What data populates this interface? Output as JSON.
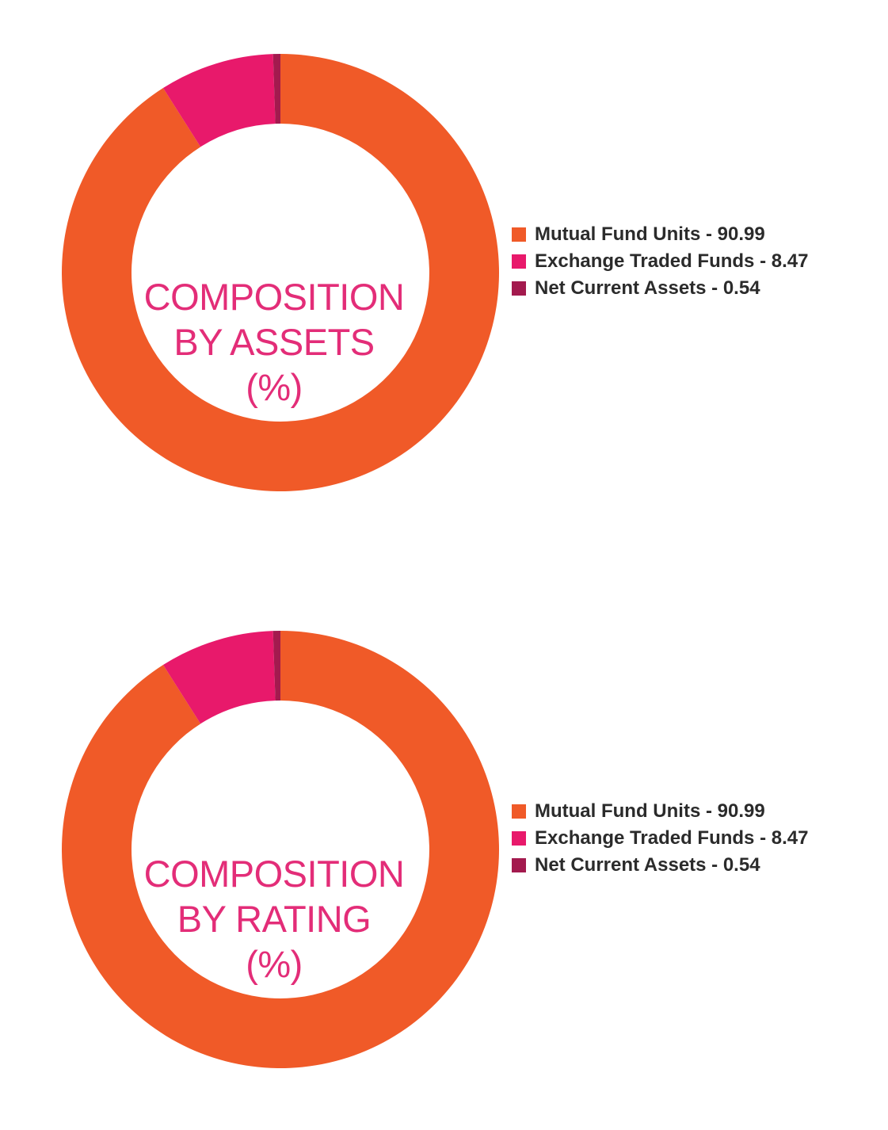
{
  "colors": {
    "mutual_fund_units": "#f05a28",
    "exchange_traded_funds": "#e8196b",
    "net_current_assets": "#a31a4e",
    "title_text": "#e32d78"
  },
  "chart_data": [
    {
      "type": "pie",
      "donut": true,
      "title_lines": [
        "COMPOSITION",
        "BY ASSETS",
        "(%)"
      ],
      "legend_position": "right",
      "series": [
        {
          "name": "Mutual Fund Units",
          "value": 90.99,
          "color": "#f05a28",
          "label": "Mutual Fund Units - 90.99"
        },
        {
          "name": "Exchange Traded Funds",
          "value": 8.47,
          "color": "#e8196b",
          "label": "Exchange Traded Funds - 8.47"
        },
        {
          "name": "Net Current Assets",
          "value": 0.54,
          "color": "#a31a4e",
          "label": "Net Current Assets - 0.54"
        }
      ]
    },
    {
      "type": "pie",
      "donut": true,
      "title_lines": [
        "COMPOSITION",
        "BY RATING",
        "(%)"
      ],
      "legend_position": "right",
      "series": [
        {
          "name": "Mutual Fund Units",
          "value": 90.99,
          "color": "#f05a28",
          "label": "Mutual Fund Units - 90.99"
        },
        {
          "name": "Exchange Traded Funds",
          "value": 8.47,
          "color": "#e8196b",
          "label": "Exchange Traded Funds - 8.47"
        },
        {
          "name": "Net Current Assets",
          "value": 0.54,
          "color": "#a31a4e",
          "label": "Net Current Assets - 0.54"
        }
      ]
    }
  ]
}
